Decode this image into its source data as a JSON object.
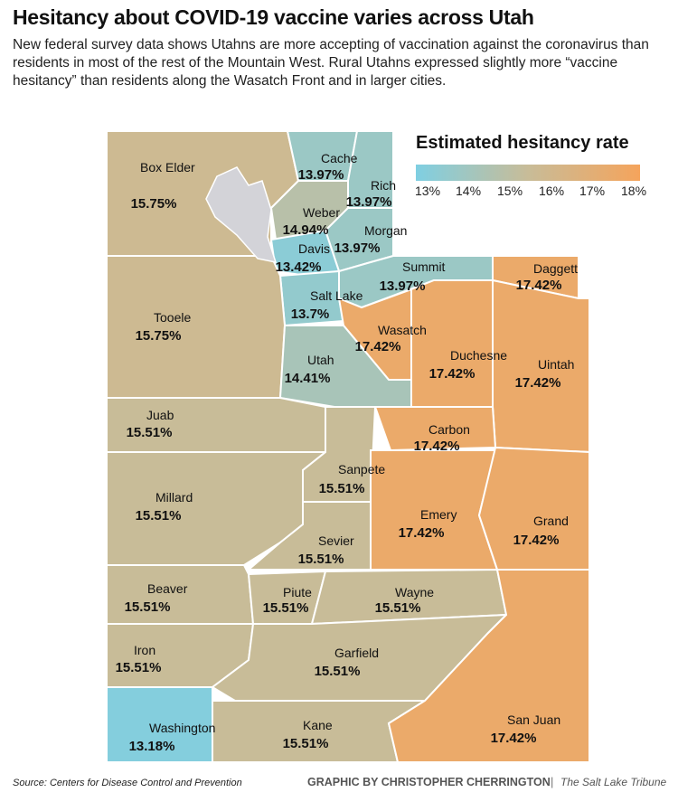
{
  "title": "Hesitancy about COVID-19 vaccine varies across Utah",
  "subtitle": "New federal survey data shows Utahns are more accepting of vaccination against the coronavirus than residents in most of the rest of the Mountain West. Rural Utahns expressed slightly more “vaccine hesitancy” than residents along the Wasatch Front and in larger cities.",
  "legend": {
    "title": "Estimated hesitancy rate",
    "ticks": [
      "13%",
      "14%",
      "15%",
      "16%",
      "17%",
      "18%"
    ],
    "colors": {
      "low": "#7fcfe2",
      "mid": "#c8bc98",
      "high": "#f5a45c"
    },
    "range": [
      13,
      18
    ]
  },
  "counties": [
    {
      "name": "Box Elder",
      "rate": "15.75%",
      "value": 15.75
    },
    {
      "name": "Cache",
      "rate": "13.97%",
      "value": 13.97
    },
    {
      "name": "Rich",
      "rate": "13.97%",
      "value": 13.97
    },
    {
      "name": "Weber",
      "rate": "14.94%",
      "value": 14.94
    },
    {
      "name": "Morgan",
      "rate": "13.97%",
      "value": 13.97
    },
    {
      "name": "Davis",
      "rate": "13.42%",
      "value": 13.42
    },
    {
      "name": "Summit",
      "rate": "13.97%",
      "value": 13.97
    },
    {
      "name": "Salt Lake",
      "rate": "13.7%",
      "value": 13.7
    },
    {
      "name": "Tooele",
      "rate": "15.75%",
      "value": 15.75
    },
    {
      "name": "Wasatch",
      "rate": "17.42%",
      "value": 17.42
    },
    {
      "name": "Utah",
      "rate": "14.41%",
      "value": 14.41
    },
    {
      "name": "Duchesne",
      "rate": "17.42%",
      "value": 17.42
    },
    {
      "name": "Daggett",
      "rate": "17.42%",
      "value": 17.42
    },
    {
      "name": "Uintah",
      "rate": "17.42%",
      "value": 17.42
    },
    {
      "name": "Carbon",
      "rate": "17.42%",
      "value": 17.42
    },
    {
      "name": "Juab",
      "rate": "15.51%",
      "value": 15.51
    },
    {
      "name": "Millard",
      "rate": "15.51%",
      "value": 15.51
    },
    {
      "name": "Sanpete",
      "rate": "15.51%",
      "value": 15.51
    },
    {
      "name": "Sevier",
      "rate": "15.51%",
      "value": 15.51
    },
    {
      "name": "Emery",
      "rate": "17.42%",
      "value": 17.42
    },
    {
      "name": "Grand",
      "rate": "17.42%",
      "value": 17.42
    },
    {
      "name": "Beaver",
      "rate": "15.51%",
      "value": 15.51
    },
    {
      "name": "Piute",
      "rate": "15.51%",
      "value": 15.51
    },
    {
      "name": "Wayne",
      "rate": "15.51%",
      "value": 15.51
    },
    {
      "name": "Iron",
      "rate": "15.51%",
      "value": 15.51
    },
    {
      "name": "Garfield",
      "rate": "15.51%",
      "value": 15.51
    },
    {
      "name": "Washington",
      "rate": "13.18%",
      "value": 13.18
    },
    {
      "name": "Kane",
      "rate": "15.51%",
      "value": 15.51
    },
    {
      "name": "San Juan",
      "rate": "17.42%",
      "value": 17.42
    }
  ],
  "footer": {
    "source": "Source: Centers for Disease Control and Prevention",
    "credit": "GRAPHIC BY CHRISTOPHER CHERRINGTON",
    "separator": "|",
    "publication": "The Salt Lake Tribune"
  }
}
